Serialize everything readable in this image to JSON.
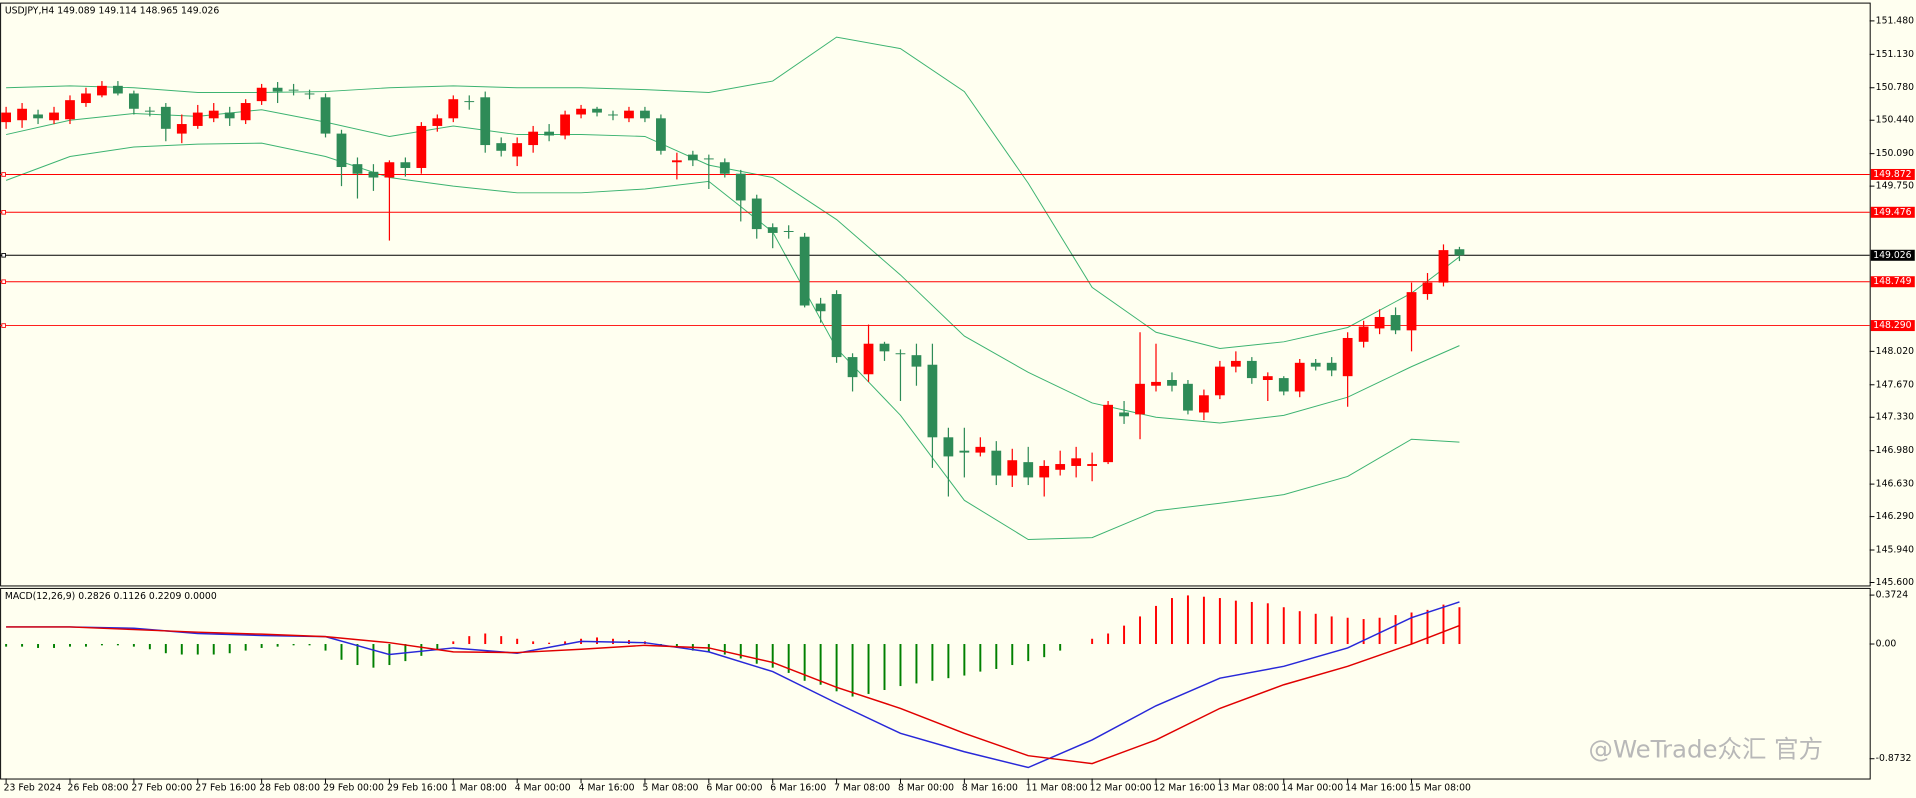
{
  "chart_data": [
    {
      "type": "candlestick",
      "title": "USDJPY,H4  149.089 149.114 148.965 149.026",
      "categories": [
        "23 Feb 2024",
        null,
        null,
        null,
        "26 Feb 08:00",
        null,
        null,
        null,
        "27 Feb 00:00",
        null,
        null,
        null,
        "27 Feb 16:00",
        null,
        null,
        null,
        "28 Feb 08:00",
        null,
        null,
        null,
        "29 Feb 00:00",
        null,
        null,
        null,
        "29 Feb 16:00",
        null,
        null,
        null,
        "1 Mar 08:00",
        null,
        null,
        null,
        "4 Mar 00:00",
        null,
        null,
        null,
        "4 Mar 16:00",
        null,
        null,
        null,
        "5 Mar 08:00",
        null,
        null,
        null,
        "6 Mar 00:00",
        null,
        null,
        null,
        "6 Mar 16:00",
        null,
        null,
        null,
        "7 Mar 08:00",
        null,
        null,
        null,
        "8 Mar 00:00",
        null,
        null,
        null,
        "8 Mar 16:00",
        null,
        null,
        null,
        "11 Mar 08:00",
        null,
        null,
        null,
        "12 Mar 00:00",
        null,
        null,
        null,
        "12 Mar 16:00",
        null,
        null,
        null,
        "13 Mar 08:00",
        null,
        null,
        null,
        "14 Mar 00:00",
        null,
        null,
        null,
        "14 Mar 16:00",
        null,
        null,
        null,
        "15 Mar 08:00",
        null,
        null,
        null
      ],
      "open": [
        150.42,
        150.44,
        150.5,
        150.44,
        150.45,
        150.62,
        150.7,
        150.8,
        150.72,
        150.54,
        150.58,
        150.3,
        150.38,
        150.46,
        150.52,
        150.44,
        150.64,
        150.78,
        150.76,
        150.72,
        150.68,
        150.3,
        149.98,
        149.9,
        149.84,
        150.0,
        149.94,
        150.38,
        150.46,
        150.64,
        150.68,
        150.2,
        150.06,
        150.18,
        150.32,
        150.28,
        150.5,
        150.56,
        150.5,
        150.46,
        150.54,
        150.46,
        150.0,
        150.08,
        150.04,
        150.0,
        149.88,
        149.62,
        149.32,
        149.28,
        149.22,
        148.52,
        148.62,
        147.96,
        147.78,
        148.1,
        148.0,
        147.98,
        147.88,
        147.12,
        146.98,
        146.96,
        146.98,
        146.72,
        146.86,
        146.7,
        146.78,
        146.82,
        146.82,
        146.86,
        147.38,
        147.36,
        147.66,
        147.72,
        147.68,
        147.38,
        147.56,
        147.86,
        147.92,
        147.72,
        147.74,
        147.6,
        147.9,
        147.9,
        147.76,
        148.12,
        148.26,
        148.4,
        148.24,
        148.62,
        148.74,
        149.089
      ],
      "high": [
        150.58,
        150.62,
        150.55,
        150.58,
        150.7,
        150.78,
        150.85,
        150.85,
        150.75,
        150.58,
        150.62,
        150.5,
        150.6,
        150.62,
        150.58,
        150.66,
        150.82,
        150.84,
        150.82,
        150.76,
        150.72,
        150.34,
        150.05,
        149.98,
        150.02,
        150.05,
        150.42,
        150.5,
        150.7,
        150.7,
        150.74,
        150.26,
        150.26,
        150.38,
        150.4,
        150.54,
        150.6,
        150.58,
        150.54,
        150.58,
        150.58,
        150.5,
        150.1,
        150.12,
        150.08,
        150.04,
        149.92,
        149.66,
        149.36,
        149.34,
        149.26,
        148.58,
        148.66,
        148.0,
        148.3,
        148.12,
        148.04,
        148.1,
        148.1,
        147.22,
        147.22,
        147.12,
        147.08,
        147.0,
        147.02,
        146.88,
        146.98,
        147.02,
        146.96,
        147.5,
        147.5,
        148.22,
        148.1,
        147.8,
        147.72,
        147.62,
        147.92,
        148.02,
        147.96,
        147.8,
        147.76,
        147.94,
        147.94,
        147.96,
        148.22,
        148.34,
        148.46,
        148.48,
        148.74,
        148.84,
        149.14,
        149.114
      ],
      "low": [
        150.35,
        150.36,
        150.4,
        150.4,
        150.4,
        150.58,
        150.68,
        150.7,
        150.5,
        150.48,
        150.22,
        150.2,
        150.35,
        150.42,
        150.38,
        150.4,
        150.6,
        150.62,
        150.7,
        150.66,
        150.26,
        149.75,
        149.62,
        149.7,
        149.18,
        149.85,
        149.88,
        150.32,
        150.42,
        150.55,
        150.1,
        150.06,
        149.96,
        150.1,
        150.22,
        150.24,
        150.46,
        150.48,
        150.44,
        150.42,
        150.42,
        150.08,
        149.82,
        149.96,
        149.72,
        149.84,
        149.38,
        149.2,
        149.1,
        149.2,
        148.48,
        148.32,
        147.9,
        147.6,
        147.7,
        147.92,
        147.5,
        147.66,
        146.8,
        146.5,
        146.7,
        146.92,
        146.62,
        146.6,
        146.62,
        146.5,
        146.72,
        146.7,
        146.66,
        146.84,
        147.26,
        147.1,
        147.6,
        147.6,
        147.36,
        147.3,
        147.52,
        147.8,
        147.68,
        147.5,
        147.56,
        147.54,
        147.82,
        147.76,
        147.44,
        148.06,
        148.2,
        148.2,
        148.02,
        148.56,
        148.7,
        148.965
      ],
      "close": [
        150.52,
        150.56,
        150.46,
        150.52,
        150.65,
        150.72,
        150.8,
        150.72,
        150.56,
        150.53,
        150.35,
        150.4,
        150.52,
        150.54,
        150.46,
        150.62,
        150.78,
        150.74,
        150.75,
        150.71,
        150.3,
        149.95,
        149.88,
        149.84,
        150.0,
        149.94,
        150.38,
        150.46,
        150.66,
        150.63,
        150.18,
        150.12,
        150.2,
        150.32,
        150.28,
        150.5,
        150.56,
        150.52,
        150.49,
        150.54,
        150.46,
        150.12,
        150.02,
        150.02,
        150.03,
        149.88,
        149.6,
        149.3,
        149.26,
        149.27,
        148.5,
        148.44,
        147.96,
        147.75,
        148.1,
        148.02,
        147.99,
        147.86,
        147.12,
        146.92,
        146.96,
        147.02,
        146.72,
        146.88,
        146.7,
        146.82,
        146.84,
        146.9,
        146.84,
        147.46,
        147.34,
        147.68,
        147.7,
        147.66,
        147.4,
        147.56,
        147.86,
        147.92,
        147.74,
        147.76,
        147.6,
        147.9,
        147.86,
        147.82,
        148.16,
        148.28,
        148.38,
        148.24,
        148.64,
        148.74,
        149.08,
        149.026
      ],
      "up_color": "#ff0000",
      "down_color": "#2e8b57",
      "series": [
        {
          "color": "#3cb371",
          "x": [
            0,
            4,
            8,
            12,
            16,
            20,
            24,
            28,
            32,
            36,
            40,
            44,
            48,
            52,
            56,
            60,
            64,
            68,
            72,
            76,
            80,
            84,
            88,
            91
          ],
          "values": [
            150.78,
            150.8,
            150.78,
            150.73,
            150.73,
            150.74,
            150.78,
            150.8,
            150.78,
            150.78,
            150.76,
            150.73,
            150.85,
            151.31,
            151.19,
            150.74,
            149.78,
            148.69,
            148.22,
            148.05,
            148.12,
            148.27,
            148.63,
            149.01
          ]
        },
        {
          "color": "#3cb371",
          "x": [
            0,
            4,
            8,
            12,
            16,
            20,
            24,
            28,
            32,
            36,
            40,
            44,
            48,
            52,
            56,
            60,
            64,
            68,
            72,
            76,
            80,
            84,
            88,
            91
          ],
          "values": [
            150.29,
            150.44,
            150.51,
            150.48,
            150.55,
            150.42,
            150.27,
            150.38,
            150.29,
            150.29,
            150.27,
            149.97,
            149.84,
            149.4,
            148.82,
            148.18,
            147.8,
            147.48,
            147.33,
            147.27,
            147.35,
            147.54,
            147.86,
            148.08
          ]
        },
        {
          "color": "#3cb371",
          "x": [
            0,
            4,
            8,
            12,
            16,
            20,
            24,
            28,
            32,
            36,
            40,
            44,
            48,
            52,
            56,
            60,
            64,
            68,
            72,
            76,
            80,
            84,
            88,
            91
          ],
          "values": [
            149.81,
            150.06,
            150.16,
            150.19,
            150.2,
            150.06,
            149.84,
            149.75,
            149.68,
            149.68,
            149.72,
            149.8,
            149.27,
            148.05,
            147.35,
            146.46,
            146.05,
            146.07,
            146.35,
            146.43,
            146.52,
            146.71,
            147.1,
            147.07
          ]
        }
      ],
      "levels": [
        {
          "value": 149.872,
          "label": "149.872",
          "color": "#ff0000"
        },
        {
          "value": 149.476,
          "label": "149.476",
          "color": "#ff0000"
        },
        {
          "value": 148.749,
          "label": "148.749",
          "color": "#ff0000"
        },
        {
          "value": 148.29,
          "label": "148.290",
          "color": "#ff0000"
        },
        {
          "value": 149.026,
          "label": "149.026",
          "color": "#000000"
        }
      ],
      "ylim": [
        145.57,
        151.66
      ],
      "yticks": [
        {
          "value": 151.48,
          "label": "151.480"
        },
        {
          "value": 151.13,
          "label": "151.130"
        },
        {
          "value": 150.78,
          "label": "150.780"
        },
        {
          "value": 150.44,
          "label": "150.440"
        },
        {
          "value": 150.09,
          "label": "150.090"
        },
        {
          "value": 149.75,
          "label": "149.750"
        },
        {
          "value": 148.02,
          "label": "148.020"
        },
        {
          "value": 147.67,
          "label": "147.670"
        },
        {
          "value": 147.33,
          "label": "147.330"
        },
        {
          "value": 146.98,
          "label": "146.980"
        },
        {
          "value": 146.63,
          "label": "146.630"
        },
        {
          "value": 146.29,
          "label": "146.290"
        },
        {
          "value": 145.94,
          "label": "145.940"
        },
        {
          "value": 145.6,
          "label": "145.600"
        }
      ],
      "watermark": "@WeTrade众汇 官方"
    },
    {
      "type": "macd",
      "title": "MACD(12,26,9) 0.2826 0.1126 0.2209 0.0000",
      "histogram": [
        -0.02,
        -0.02,
        -0.03,
        -0.03,
        -0.02,
        -0.02,
        -0.01,
        -0.01,
        -0.02,
        -0.04,
        -0.07,
        -0.08,
        -0.08,
        -0.08,
        -0.07,
        -0.05,
        -0.03,
        -0.02,
        -0.01,
        -0.01,
        -0.05,
        -0.12,
        -0.16,
        -0.18,
        -0.16,
        -0.13,
        -0.09,
        -0.04,
        0.02,
        0.06,
        0.08,
        0.06,
        0.04,
        0.02,
        0.01,
        0.02,
        0.04,
        0.05,
        0.04,
        0.03,
        0.02,
        -0.01,
        -0.03,
        -0.05,
        -0.06,
        -0.08,
        -0.11,
        -0.15,
        -0.18,
        -0.22,
        -0.28,
        -0.31,
        -0.36,
        -0.4,
        -0.38,
        -0.35,
        -0.32,
        -0.3,
        -0.28,
        -0.26,
        -0.24,
        -0.21,
        -0.19,
        -0.16,
        -0.13,
        -0.1,
        -0.05,
        0.0,
        0.04,
        0.08,
        0.14,
        0.21,
        0.29,
        0.35,
        0.37,
        0.36,
        0.35,
        0.33,
        0.32,
        0.31,
        0.28,
        0.25,
        0.23,
        0.21,
        0.2,
        0.19,
        0.2,
        0.22,
        0.24,
        0.26,
        0.3,
        0.28
      ],
      "up_color": "#ff0000",
      "down_color": "#008000",
      "series": [
        {
          "color": "#2828d8",
          "x": [
            0,
            4,
            8,
            12,
            16,
            20,
            24,
            28,
            32,
            36,
            40,
            44,
            48,
            52,
            56,
            60,
            64,
            68,
            72,
            76,
            80,
            84,
            88,
            91
          ],
          "values": [
            0.13,
            0.13,
            0.12,
            0.08,
            0.065,
            0.056,
            -0.08,
            -0.03,
            -0.07,
            0.02,
            0.01,
            -0.06,
            -0.21,
            -0.45,
            -0.68,
            -0.82,
            -0.94,
            -0.73,
            -0.47,
            -0.26,
            -0.17,
            -0.03,
            0.2,
            0.32
          ]
        },
        {
          "color": "#e00000",
          "x": [
            0,
            4,
            8,
            12,
            16,
            20,
            24,
            28,
            32,
            36,
            40,
            44,
            48,
            52,
            56,
            60,
            64,
            68,
            72,
            76,
            80,
            84,
            88,
            91
          ],
          "values": [
            0.13,
            0.13,
            0.11,
            0.09,
            0.075,
            0.056,
            0.01,
            -0.06,
            -0.065,
            -0.04,
            -0.01,
            -0.03,
            -0.14,
            -0.33,
            -0.49,
            -0.68,
            -0.85,
            -0.91,
            -0.73,
            -0.49,
            -0.31,
            -0.17,
            0.0,
            0.14
          ]
        }
      ],
      "ylim": [
        -1.023,
        0.428
      ],
      "yticks": [
        0.3724,
        {
          "value": 0,
          "label": "0.00"
        },
        -0.8732
      ]
    }
  ]
}
